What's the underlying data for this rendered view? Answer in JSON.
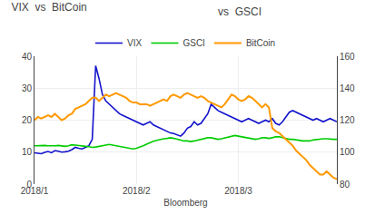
{
  "chart_data": {
    "type": "line",
    "title": "VIX  vs  BitCoin",
    "annotations": [
      "vs  GSCI"
    ],
    "xlabel": "Bloomberg",
    "categories": [
      "2018/1",
      null,
      null,
      null,
      null,
      null,
      null,
      null,
      null,
      null,
      null,
      null,
      null,
      null,
      null,
      null,
      null,
      null,
      null,
      null,
      null,
      null,
      null,
      null,
      null,
      null,
      null,
      null,
      null,
      null,
      "2018/2",
      null,
      null,
      null,
      null,
      null,
      null,
      null,
      null,
      null,
      null,
      null,
      null,
      null,
      null,
      null,
      null,
      null,
      null,
      null,
      null,
      null,
      null,
      null,
      null,
      null,
      null,
      null,
      null,
      null,
      "2018/3",
      null,
      null,
      null,
      null,
      null,
      null,
      null,
      null,
      null,
      null,
      null,
      null,
      null,
      null,
      null,
      null,
      null,
      null,
      null,
      null,
      null,
      null,
      null,
      null,
      null,
      null,
      null,
      null,
      null
    ],
    "series": [
      {
        "name": "VIX",
        "color": "#1414cc",
        "values": [
          9.8,
          9.6,
          9.5,
          9.9,
          10.2,
          9.8,
          10.5,
          10.3,
          10.0,
          10.1,
          10.3,
          10.8,
          11.5,
          11.2,
          11.0,
          11.5,
          12.0,
          14.0,
          37.0,
          33.0,
          28.0,
          26.0,
          25.0,
          24.0,
          23.0,
          22.0,
          21.5,
          21.0,
          20.5,
          20.0,
          19.5,
          19.0,
          18.5,
          19.0,
          19.5,
          18.5,
          18.0,
          17.5,
          17.0,
          16.5,
          16.0,
          15.8,
          15.5,
          15.0,
          16.0,
          17.5,
          18.0,
          19.5,
          18.5,
          19.0,
          20.5,
          22.0,
          25.0,
          24.0,
          23.0,
          22.5,
          22.0,
          21.5,
          21.0,
          20.5,
          20.0,
          19.5,
          20.0,
          20.5,
          20.0,
          19.5,
          19.0,
          19.5,
          20.0,
          19.5,
          20.5,
          19.0,
          18.5,
          19.5,
          21.0,
          22.5,
          23.0,
          22.5,
          22.0,
          21.5,
          21.0,
          20.5,
          20.0,
          20.5,
          20.0,
          19.5,
          20.0,
          20.5,
          20.0,
          19.5
        ]
      },
      {
        "name": "GSCI",
        "color": "#00cc00",
        "values": [
          12.0,
          12.1,
          12.2,
          12.1,
          12.0,
          11.9,
          12.0,
          12.1,
          12.0,
          11.8,
          12.0,
          12.3,
          12.2,
          12.0,
          11.9,
          11.8,
          11.7,
          11.5,
          11.6,
          11.8,
          12.0,
          12.2,
          12.4,
          12.2,
          12.0,
          11.8,
          11.6,
          11.4,
          11.2,
          11.0,
          11.2,
          11.5,
          12.0,
          12.5,
          13.0,
          13.4,
          13.7,
          14.0,
          14.2,
          14.3,
          14.5,
          14.3,
          14.0,
          13.8,
          13.5,
          13.5,
          13.3,
          13.5,
          13.8,
          14.0,
          14.2,
          14.5,
          14.5,
          14.3,
          14.0,
          14.2,
          14.5,
          14.8,
          15.0,
          15.2,
          15.0,
          14.8,
          14.5,
          14.3,
          14.0,
          14.0,
          14.2,
          14.5,
          14.5,
          14.3,
          14.5,
          14.8,
          14.8,
          14.5,
          14.3,
          14.0,
          14.0,
          13.8,
          13.5,
          13.5,
          13.5,
          13.5,
          13.8,
          14.0,
          14.0,
          14.2,
          14.2,
          14.0,
          14.0,
          14.0
        ]
      },
      {
        "name": "BitCoin",
        "color": "#ff9900",
        "axis": "y2",
        "values": [
          120,
          122,
          121,
          122,
          123,
          122,
          124,
          122,
          120,
          121,
          123,
          124,
          127,
          128,
          129,
          130,
          132,
          134,
          134,
          132,
          134,
          136,
          135,
          136,
          137,
          136,
          135,
          134,
          132,
          131,
          131,
          130,
          130,
          130,
          129,
          130,
          131,
          132,
          133,
          132,
          135,
          136,
          135,
          134,
          136,
          137,
          136,
          135,
          134,
          135,
          134,
          132,
          131,
          130,
          129,
          128,
          130,
          133,
          136,
          135,
          133,
          132,
          133,
          135,
          134,
          132,
          130,
          128,
          130,
          128,
          115,
          113,
          112,
          110,
          108,
          106,
          104,
          101,
          99,
          97,
          95,
          92,
          90,
          88,
          86,
          86,
          88,
          86,
          84,
          83
        ]
      }
    ],
    "ylim": [
      0,
      40
    ],
    "yticks": [
      0,
      10,
      20,
      30,
      40
    ],
    "y2lim": [
      80,
      160
    ],
    "y2ticks": [
      80,
      100,
      120,
      140,
      160
    ],
    "grid": true,
    "legend": "top"
  }
}
